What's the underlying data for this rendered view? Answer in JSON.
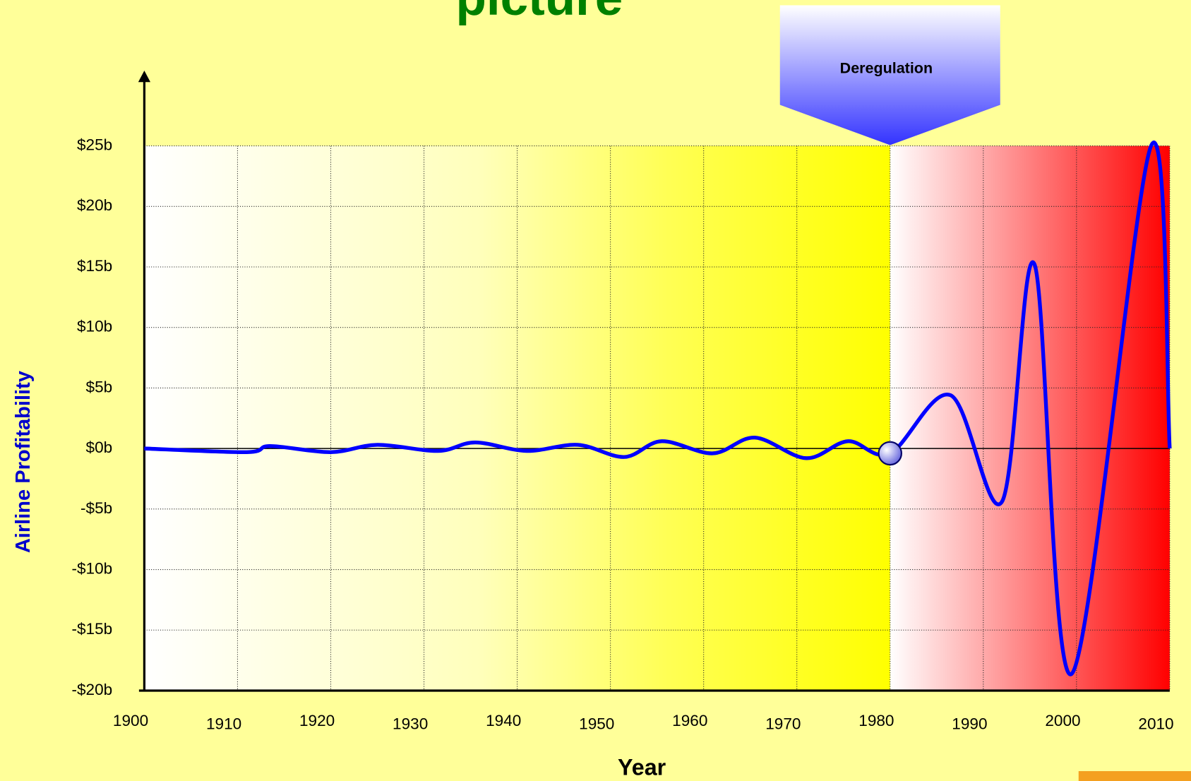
{
  "chart_data": {
    "type": "line",
    "title": "picture",
    "x_label": "Year",
    "y_label": "Airline Profitability",
    "x": [
      1900,
      1911,
      1913.5,
      1920,
      1925,
      1931.5,
      1935.5,
      1941,
      1946.5,
      1951.5,
      1955.5,
      1961,
      1965.5,
      1971,
      1975.5,
      1980,
      1986.5,
      1992,
      1995.5,
      1999.5,
      2008,
      2010
    ],
    "values": [
      0,
      -0.3,
      0.2,
      -0.3,
      0.3,
      -0.2,
      0.5,
      -0.2,
      0.3,
      -0.7,
      0.6,
      -0.4,
      0.9,
      -0.8,
      0.6,
      -0.4,
      4.4,
      -4.4,
      15.2,
      -18.6,
      25,
      0
    ],
    "color": "#0000ff",
    "xlim": [
      1900,
      2010
    ],
    "xticks": [
      1900,
      1910,
      1920,
      1930,
      1940,
      1950,
      1960,
      1970,
      1980,
      1990,
      2000,
      2010
    ],
    "ylim": [
      -20,
      25
    ],
    "yticks": [
      {
        "value": -20,
        "label": "-$20b"
      },
      {
        "value": -15,
        "label": "-$15b"
      },
      {
        "value": -10,
        "label": "-$10b"
      },
      {
        "value": -5,
        "label": "-$5b"
      },
      {
        "value": 0,
        "label": "$0b"
      },
      {
        "value": 5,
        "label": "$5b"
      },
      {
        "value": 10,
        "label": "$10b"
      },
      {
        "value": 15,
        "label": "$15b"
      },
      {
        "value": 20,
        "label": "$20b"
      },
      {
        "value": 25,
        "label": "$25b"
      }
    ],
    "grid": true,
    "annotation": {
      "text": "Deregulation",
      "x": 1980
    }
  }
}
